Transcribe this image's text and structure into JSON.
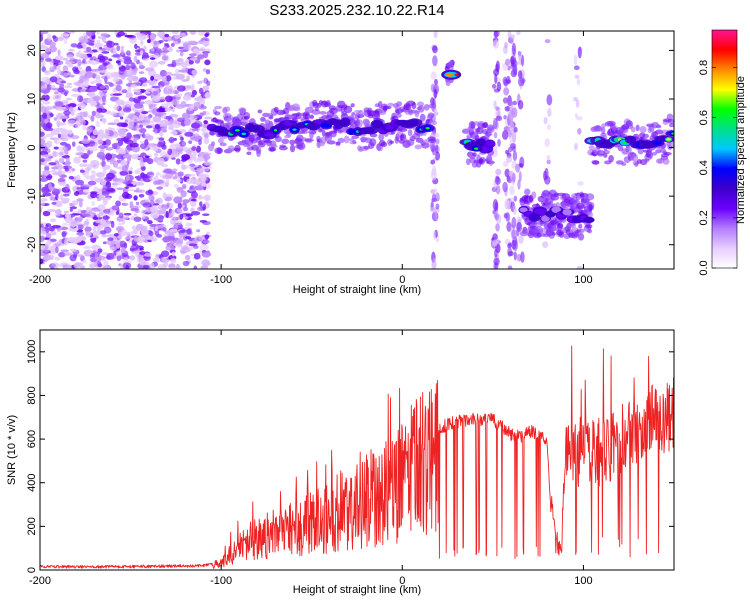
{
  "title": "S233.2025.232.10.22.R14",
  "colors": {
    "snr_line": "#ee2222",
    "frame": "#000000",
    "colormap": [
      "#ffffff",
      "#e7cdff",
      "#b27cff",
      "#6b00ff",
      "#3d00cc",
      "#0000ff",
      "#00c8ff",
      "#00e08a",
      "#00ff00",
      "#ffff00",
      "#ff8800",
      "#ff0000",
      "#ff1493"
    ]
  },
  "chart_data": [
    {
      "type": "heatmap",
      "name": "spectrogram",
      "xlabel": "Height of straight line (km)",
      "ylabel": "Frequency (Hz)",
      "xlim": [
        -200,
        150
      ],
      "ylim": [
        -25,
        24
      ],
      "xticks": [
        -200,
        -100,
        0,
        100
      ],
      "yticks": [
        -20,
        -10,
        0,
        10,
        20
      ],
      "colorbar": {
        "label": "Normalized spectral amplitude",
        "range": [
          0.0,
          0.95
        ],
        "ticks": [
          0.0,
          0.2,
          0.4,
          0.6,
          0.8
        ],
        "tick_labels": [
          "0.0",
          "0.2",
          "0.4",
          "0.6",
          "0.8"
        ]
      },
      "features": [
        {
          "name": "broadband noise",
          "x_range": [
            -200,
            -107
          ],
          "y_range": [
            -25,
            24
          ],
          "amplitude": 0.05
        },
        {
          "name": "main echo trace",
          "points": [
            [
              -105,
              4
            ],
            [
              -80,
              3
            ],
            [
              -50,
              5
            ],
            [
              -20,
              4
            ],
            [
              0,
              5
            ],
            [
              10,
              4.5
            ],
            [
              17,
              4.5
            ]
          ],
          "amplitude": 0.35
        },
        {
          "name": "echo blob high",
          "x": 27,
          "y": 15,
          "amplitude": 0.8
        },
        {
          "name": "echo blob",
          "x": 42,
          "y": 0.5,
          "amplitude": 0.35
        },
        {
          "name": "negative shift band",
          "x_range": [
            67,
            104
          ],
          "y": -13.5,
          "amplitude": 0.25
        },
        {
          "name": "return trace",
          "points": [
            [
              105,
              0.5
            ],
            [
              120,
              1
            ],
            [
              135,
              0.5
            ],
            [
              150,
              2
            ]
          ],
          "amplitude": 0.45
        }
      ]
    },
    {
      "type": "line",
      "name": "snr",
      "xlabel": "Height of straight line (km)",
      "ylabel": "SNR (10 * v/v)",
      "xlim": [
        -200,
        150
      ],
      "ylim": [
        0,
        1100
      ],
      "xticks": [
        -200,
        -100,
        0,
        100
      ],
      "yticks": [
        0,
        200,
        400,
        600,
        800,
        1000
      ],
      "series": [
        {
          "name": "SNR envelope",
          "x": [
            -200,
            -150,
            -110,
            -100,
            -95,
            -85,
            -75,
            -65,
            -55,
            -45,
            -35,
            -25,
            -15,
            -5,
            0,
            5,
            10,
            20,
            30,
            40,
            50,
            55,
            60,
            65,
            70,
            75,
            80,
            82,
            85,
            88,
            90,
            95,
            100,
            105,
            110,
            120,
            125,
            130,
            135,
            140,
            145,
            150
          ],
          "values": [
            15,
            15,
            20,
            40,
            90,
            160,
            200,
            230,
            250,
            280,
            330,
            380,
            420,
            450,
            500,
            560,
            600,
            650,
            680,
            690,
            690,
            660,
            620,
            610,
            640,
            620,
            600,
            250,
            60,
            60,
            500,
            520,
            580,
            560,
            540,
            600,
            650,
            620,
            680,
            700,
            680,
            720
          ]
        }
      ]
    }
  ]
}
